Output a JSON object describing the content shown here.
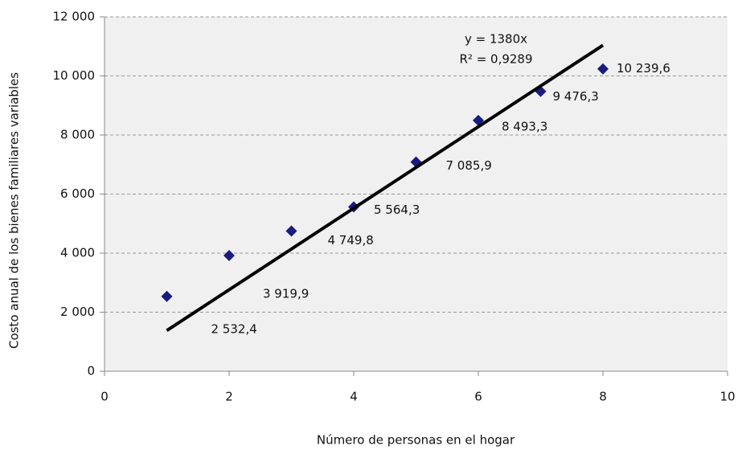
{
  "chart_data": {
    "type": "scatter",
    "x_label": "Número de personas en el hogar",
    "y_label": "Costo anual de los bienes familiares variables",
    "x": [
      1,
      2,
      3,
      4,
      5,
      6,
      7,
      8
    ],
    "values": [
      2532.4,
      3919.9,
      4749.8,
      5564.3,
      7085.9,
      8493.3,
      9476.3,
      10239.6
    ],
    "value_labels": [
      "2 532,4",
      "3 919,9",
      "4 749,8",
      "5 564,3",
      "7 085,9",
      "8 493,3",
      "9 476,3",
      "10 239,6"
    ],
    "color": "#1a1a80",
    "xlim": [
      0,
      10
    ],
    "xticks": [
      0,
      2,
      4,
      6,
      8,
      10
    ],
    "ylim": [
      0,
      12000
    ],
    "yticks": [
      0,
      {
        "value": 2000,
        "label": "2 000"
      },
      {
        "value": 4000,
        "label": "4 000"
      },
      {
        "value": 6000,
        "label": "6 000"
      },
      {
        "value": 8000,
        "label": "8 000"
      },
      {
        "value": 10000,
        "label": "10 000"
      },
      {
        "value": 12000,
        "label": "12 000"
      }
    ],
    "grid": true,
    "trendline": {
      "slope": 1380,
      "label": "y = 1380x",
      "r2_label": "R² = 0,9289",
      "color": "#000000"
    }
  }
}
